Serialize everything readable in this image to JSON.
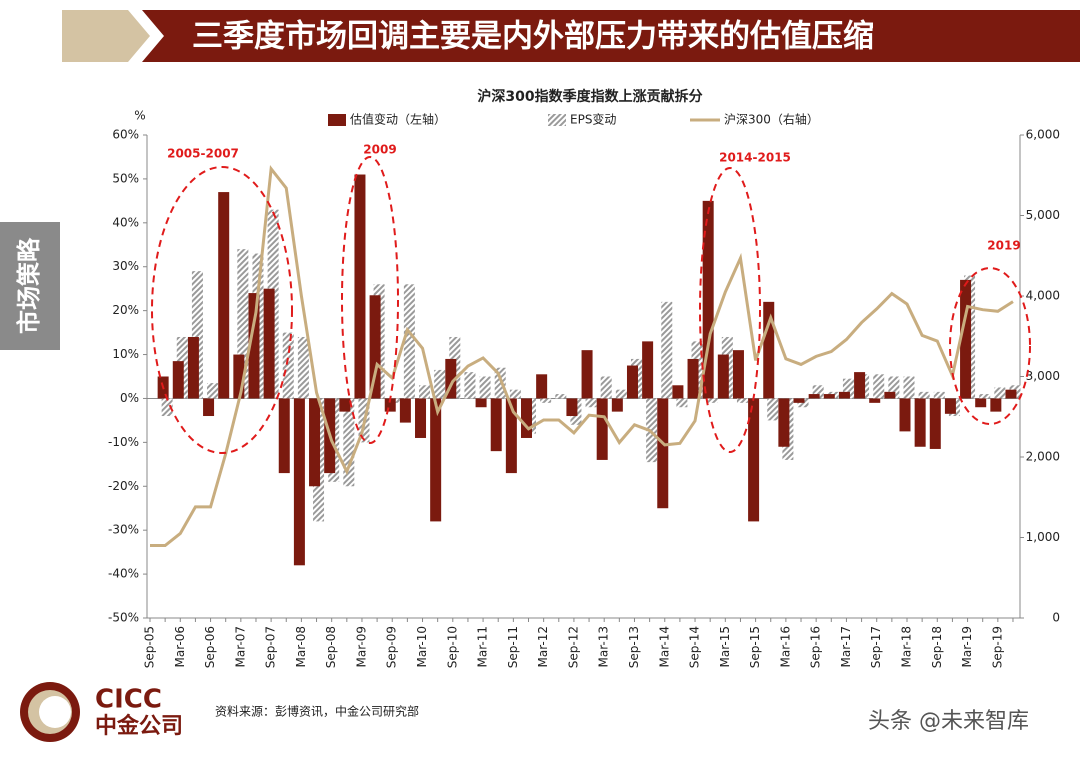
{
  "header": {
    "title": "三季度市场回调主要是内外部压力带来的估值压缩"
  },
  "side_tab": "市场策略",
  "chart_data": {
    "type": "bar",
    "title": "沪深300指数季度指数上涨贡献拆分",
    "y_label": "%",
    "categories": [
      "Sep-05",
      null,
      "Mar-06",
      null,
      "Sep-06",
      null,
      "Mar-07",
      null,
      "Sep-07",
      null,
      "Mar-08",
      null,
      "Sep-08",
      null,
      "Mar-09",
      null,
      "Sep-09",
      null,
      "Mar-10",
      null,
      "Sep-10",
      null,
      "Mar-11",
      null,
      "Sep-11",
      null,
      "Mar-12",
      null,
      "Sep-12",
      null,
      "Mar-13",
      null,
      "Sep-13",
      null,
      "Mar-14",
      null,
      "Sep-14",
      null,
      "Mar-15",
      null,
      "Sep-15",
      null,
      "Mar-16",
      null,
      "Sep-16",
      null,
      "Mar-17",
      null,
      "Sep-17",
      null,
      "Mar-18",
      null,
      "Sep-18",
      null,
      "Mar-19",
      null,
      "Sep-19",
      null
    ],
    "series": [
      {
        "name": "估值变动（左轴）",
        "color": "#7b1a0f",
        "values": [
          null,
          5,
          8.5,
          14,
          -4,
          47,
          10,
          24,
          25,
          -17,
          -38,
          -20,
          -17,
          -3,
          51,
          23.5,
          -3,
          -5.5,
          -9,
          -28,
          9,
          0,
          -2,
          -12,
          -17,
          -9,
          5.5,
          0,
          -4,
          11,
          -14,
          -3,
          7.5,
          13,
          -25,
          3,
          9,
          45,
          10,
          11,
          -28,
          22,
          -11,
          -1,
          1,
          1,
          1.5,
          6,
          -1,
          1.5,
          -7.5,
          -11,
          -11.5,
          -3.5,
          27,
          -2,
          -3,
          2
        ]
      },
      {
        "name": "EPS变动",
        "color": "#9a9a9a",
        "pattern": "hatch",
        "values": [
          null,
          -4,
          14,
          29,
          3.5,
          0,
          34,
          33,
          43,
          15,
          14,
          -28,
          -19,
          -20,
          -10,
          26,
          -1,
          26,
          3,
          6.5,
          14,
          6,
          5,
          7,
          2,
          -8,
          -1,
          1,
          -6,
          -2,
          5,
          2,
          9,
          -14.5,
          22,
          -2,
          13,
          -1,
          14,
          -1,
          0,
          -5,
          -14,
          -2,
          3,
          1.5,
          4.5,
          5.5,
          5.5,
          5,
          5,
          1.5,
          1.5,
          -4,
          28,
          1,
          2.5,
          3
        ]
      },
      {
        "name": "沪深300（右轴）",
        "color": "#c8ad7f",
        "type": "line",
        "axis": "y2",
        "values": [
          900,
          900,
          1050,
          1380,
          1380,
          2040,
          2800,
          3800,
          5580,
          5340,
          4000,
          2800,
          2200,
          1820,
          2300,
          3150,
          2980,
          3580,
          3350,
          2560,
          2940,
          3130,
          3230,
          3040,
          2560,
          2350,
          2460,
          2460,
          2300,
          2520,
          2500,
          2180,
          2400,
          2330,
          2150,
          2170,
          2450,
          3530,
          4050,
          4470,
          3200,
          3730,
          3220,
          3150,
          3250,
          3310,
          3460,
          3670,
          3840,
          4030,
          3900,
          3510,
          3440,
          3010,
          3870,
          3830,
          3810,
          3930
        ]
      }
    ],
    "ylim": [
      -50,
      60
    ],
    "yticks": [
      {
        "value": -50,
        "label": "-50%"
      },
      {
        "value": -40,
        "label": "-40%"
      },
      {
        "value": -30,
        "label": "-30%"
      },
      {
        "value": -20,
        "label": "-20%"
      },
      {
        "value": -10,
        "label": "-10%"
      },
      {
        "value": 0,
        "label": "0%"
      },
      {
        "value": 10,
        "label": "10%"
      },
      {
        "value": 20,
        "label": "20%"
      },
      {
        "value": 30,
        "label": "30%"
      },
      {
        "value": 40,
        "label": "40%"
      },
      {
        "value": 50,
        "label": "50%"
      },
      {
        "value": 60,
        "label": "60%"
      }
    ],
    "y2lim": [
      0,
      6000
    ],
    "y2ticks": [
      0,
      {
        "value": 1000,
        "label": "1,000"
      },
      {
        "value": 2000,
        "label": "2,000"
      },
      {
        "value": 3000,
        "label": "3,000"
      },
      {
        "value": 4000,
        "label": "4,000"
      },
      {
        "value": 5000,
        "label": "5,000"
      },
      {
        "value": 6000,
        "label": "6,000"
      }
    ],
    "grid": false,
    "legend": "top",
    "annotations": [
      "2005-2007",
      "2009",
      "2014-2015",
      "2019"
    ]
  },
  "footer": {
    "logo_en": "CICC",
    "logo_cn": "中金公司",
    "source": "资料来源：彭博资讯，中金公司研究部",
    "watermark": "头条 @未来智库"
  }
}
